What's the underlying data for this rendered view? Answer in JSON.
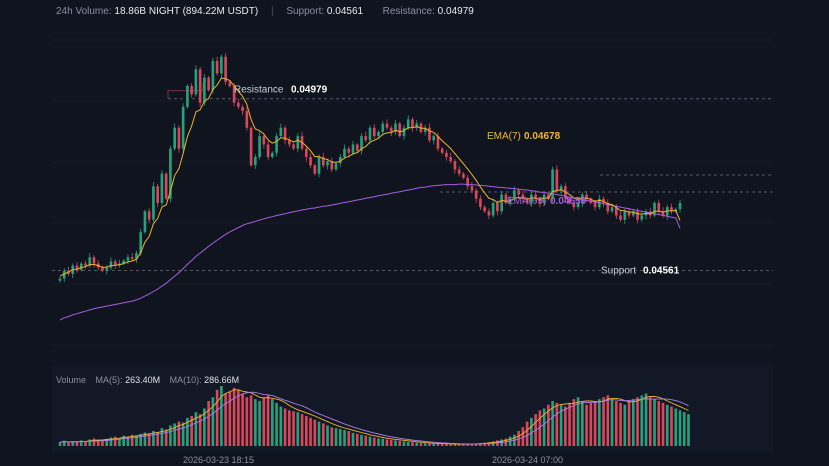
{
  "header": {
    "volume_label": "24h Volume:",
    "volume_value": "18.86B NIGHT (894.22M USDT)",
    "support_label": "Support:",
    "support_value": "0.04561",
    "resistance_label": "Resistance:",
    "resistance_value": "0.04979"
  },
  "annotations": {
    "resistance_label": "Resistance",
    "resistance_value": "0.04979",
    "support_label": "Support",
    "support_value": "0.04561",
    "ema7_label": "EMA(7)",
    "ema7_value": "0.04678",
    "ema99_label": "EMA(99)",
    "ema99_value": "0.04659"
  },
  "volume_legend": {
    "title": "Volume",
    "ma5_label": "MA(5):",
    "ma5_value": "263.40M",
    "ma10_label": "MA(10):",
    "ma10_value": "286.66M"
  },
  "time_axis": {
    "labels": [
      "2026-03-23 18:15",
      "2026-03-24 07:00"
    ]
  },
  "colors": {
    "up": "#26a17b",
    "down": "#d9475a",
    "ema7": "#f0b429",
    "ema99": "#a35ee0",
    "vol_ma10": "#b07ce8",
    "background": "#10141f"
  },
  "chart_data": {
    "type": "candlestick",
    "price_range": [
      0.0438,
      0.0511
    ],
    "resistance": 0.04979,
    "support": 0.04561,
    "close": [
      0.04539,
      0.04557,
      0.0455,
      0.0457,
      0.0456,
      0.04575,
      0.0457,
      0.0459,
      0.04575,
      0.04566,
      0.04558,
      0.04565,
      0.0458,
      0.04572,
      0.04575,
      0.04582,
      0.0459,
      0.04586,
      0.046,
      0.0465,
      0.047,
      0.0468,
      0.0476,
      0.0472,
      0.0479,
      0.0473,
      0.0485,
      0.049,
      0.0485,
      0.0495,
      0.05,
      0.0498,
      0.0504,
      0.0496,
      0.0502,
      0.0499,
      0.0506,
      0.0503,
      0.0507,
      0.0501,
      0.05,
      0.0496,
      0.0495,
      0.0494,
      0.049,
      0.0481,
      0.0483,
      0.0488,
      0.0486,
      0.0483,
      0.0484,
      0.0488,
      0.049,
      0.0487,
      0.0486,
      0.0485,
      0.0488,
      0.0485,
      0.0483,
      0.0481,
      0.0479,
      0.0483,
      0.0481,
      0.0482,
      0.048,
      0.04815,
      0.0483,
      0.0485,
      0.0484,
      0.0486,
      0.04845,
      0.0488,
      0.0487,
      0.049,
      0.0488,
      0.0489,
      0.0491,
      0.049,
      0.0489,
      0.0491,
      0.0488,
      0.049,
      0.0492,
      0.049,
      0.0491,
      0.0489,
      0.049,
      0.0487,
      0.0488,
      0.0485,
      0.0484,
      0.0483,
      0.0482,
      0.048,
      0.0479,
      0.0478,
      0.0476,
      0.0475,
      0.0473,
      0.0471,
      0.047,
      0.0469,
      0.0472,
      0.047,
      0.0474,
      0.0472,
      0.0473,
      0.0475,
      0.0474,
      0.0473,
      0.0472,
      0.0474,
      0.0473,
      0.0472,
      0.0474,
      0.0473,
      0.048,
      0.0475,
      0.0476,
      0.0473,
      0.0472,
      0.0471,
      0.0472,
      0.0474,
      0.0473,
      0.0472,
      0.0471,
      0.0473,
      0.0472,
      0.047,
      0.0471,
      0.0469,
      0.0468,
      0.047,
      0.0469,
      0.047,
      0.0468,
      0.0469,
      0.047,
      0.0469,
      0.0472,
      0.047,
      0.0469,
      0.0471,
      0.047,
      0.04705,
      0.0472
    ],
    "ema7": [
      0.04545,
      0.0455,
      0.04555,
      0.0456,
      0.04562,
      0.04565,
      0.04568,
      0.04572,
      0.04573,
      0.0457,
      0.04566,
      0.04566,
      0.0457,
      0.04571,
      0.04572,
      0.04575,
      0.04579,
      0.04581,
      0.04585,
      0.04601,
      0.04626,
      0.0464,
      0.0467,
      0.04683,
      0.0471,
      0.04715,
      0.04748,
      0.04786,
      0.04802,
      0.04839,
      0.04879,
      0.04904,
      0.04938,
      0.04943,
      0.04963,
      0.0497,
      0.04992,
      0.05002,
      0.05019,
      0.05017,
      0.05013,
      0.05,
      0.04987,
      0.04975,
      0.04956,
      0.0492,
      0.04897,
      0.04893,
      0.04885,
      0.04871,
      0.04863,
      0.04867,
      0.04876,
      0.04875,
      0.04871,
      0.04866,
      0.0487,
      0.04865,
      0.04856,
      0.04845,
      0.04831,
      0.04831,
      0.04826,
      0.04824,
      0.04818,
      0.04817,
      0.0482,
      0.04828,
      0.04831,
      0.04838,
      0.0484,
      0.0485,
      0.04855,
      0.04866,
      0.0487,
      0.04875,
      0.04884,
      0.04888,
      0.04888,
      0.04894,
      0.0489,
      0.04893,
      0.049,
      0.049,
      0.04903,
      0.04899,
      0.04899,
      0.04892,
      0.04889,
      0.04879,
      0.04869,
      0.0486,
      0.0485,
      0.04838,
      0.04826,
      0.04814,
      0.04801,
      0.04788,
      0.04774,
      0.04758,
      0.04744,
      0.04731,
      0.04728,
      0.04721,
      0.04726,
      0.04724,
      0.04725,
      0.04731,
      0.04733,
      0.04732,
      0.04729,
      0.04732,
      0.04731,
      0.04729,
      0.04732,
      0.04731,
      0.04748,
      0.04749,
      0.04752,
      0.04746,
      0.0474,
      0.04732,
      0.04729,
      0.04732,
      0.04731,
      0.04729,
      0.04724,
      0.04726,
      0.04724,
      0.04718,
      0.04716,
      0.04709,
      0.04702,
      0.04701,
      0.04698,
      0.04698,
      0.04694,
      0.04693,
      0.04695,
      0.04694,
      0.047,
      0.047,
      0.04698,
      0.04701,
      0.04701,
      0.04702,
      0.04678
    ],
    "ema99": [
      0.0444,
      0.04445,
      0.04448,
      0.04452,
      0.04455,
      0.04458,
      0.04461,
      0.04464,
      0.04467,
      0.04469,
      0.04471,
      0.04473,
      0.04475,
      0.04477,
      0.04479,
      0.04481,
      0.04483,
      0.04485,
      0.04488,
      0.04492,
      0.04497,
      0.04502,
      0.04508,
      0.04514,
      0.04521,
      0.04528,
      0.04536,
      0.04545,
      0.04553,
      0.04563,
      0.04573,
      0.04582,
      0.04592,
      0.046,
      0.04608,
      0.04616,
      0.04624,
      0.04631,
      0.04638,
      0.04645,
      0.04651,
      0.04656,
      0.04661,
      0.04666,
      0.0467,
      0.04673,
      0.04676,
      0.04679,
      0.04682,
      0.04685,
      0.04687,
      0.0469,
      0.04692,
      0.04694,
      0.04697,
      0.04699,
      0.04701,
      0.04703,
      0.04705,
      0.04707,
      0.04708,
      0.0471,
      0.04712,
      0.04713,
      0.04715,
      0.04717,
      0.04719,
      0.04721,
      0.04723,
      0.04725,
      0.04727,
      0.04729,
      0.04731,
      0.04733,
      0.04735,
      0.04737,
      0.04739,
      0.04741,
      0.04743,
      0.04745,
      0.04747,
      0.04749,
      0.04751,
      0.04753,
      0.04755,
      0.04757,
      0.04758,
      0.0476,
      0.04761,
      0.04762,
      0.04763,
      0.04764,
      0.04764,
      0.04764,
      0.04765,
      0.04765,
      0.04764,
      0.04764,
      0.04763,
      0.04762,
      0.04761,
      0.0476,
      0.04759,
      0.04758,
      0.04757,
      0.04756,
      0.04755,
      0.04754,
      0.04753,
      0.04752,
      0.04751,
      0.04749,
      0.04748,
      0.04746,
      0.04745,
      0.04743,
      0.04742,
      0.0474,
      0.04738,
      0.04736,
      0.04734,
      0.04732,
      0.0473,
      0.04728,
      0.04726,
      0.04724,
      0.04722,
      0.0472,
      0.04718,
      0.04716,
      0.04714,
      0.04712,
      0.0471,
      0.04708,
      0.04706,
      0.04704,
      0.04702,
      0.047,
      0.04698,
      0.04696,
      0.04694,
      0.04692,
      0.0469,
      0.04688,
      0.04686,
      0.04684,
      0.04659
    ],
    "volume_M": [
      20,
      28,
      18,
      25,
      22,
      30,
      24,
      35,
      40,
      28,
      32,
      38,
      45,
      50,
      42,
      55,
      48,
      60,
      58,
      65,
      72,
      68,
      80,
      75,
      95,
      88,
      110,
      120,
      130,
      125,
      150,
      160,
      180,
      170,
      200,
      240,
      260,
      300,
      320,
      280,
      290,
      310,
      300,
      280,
      260,
      270,
      250,
      240,
      260,
      270,
      250,
      230,
      210,
      200,
      190,
      185,
      180,
      170,
      160,
      150,
      140,
      130,
      120,
      110,
      100,
      95,
      90,
      85,
      80,
      70,
      65,
      60,
      55,
      50,
      45,
      40,
      38,
      35,
      33,
      30,
      28,
      25,
      22,
      20,
      18,
      16,
      15,
      14,
      13,
      12,
      12,
      11,
      10,
      10,
      10,
      10,
      10,
      12,
      14,
      16,
      18,
      20,
      24,
      30,
      35,
      40,
      50,
      60,
      80,
      100,
      130,
      150,
      170,
      190,
      200,
      220,
      240,
      230,
      220,
      210,
      230,
      250,
      260,
      240,
      220,
      230,
      240,
      250,
      260,
      270,
      250,
      240,
      230,
      220,
      240,
      250,
      260,
      270,
      280,
      260,
      250,
      240,
      230,
      220,
      210,
      200,
      190,
      180,
      170
    ]
  }
}
